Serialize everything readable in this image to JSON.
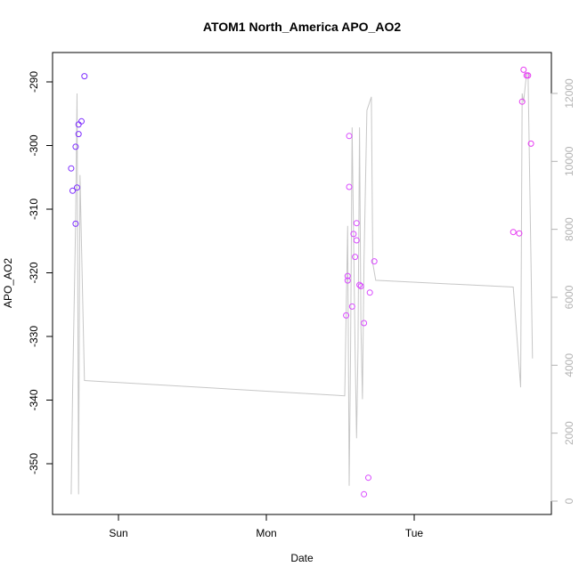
{
  "chart_data": {
    "type": "scatter",
    "title": "ATOM1 North_America APO_AO2",
    "xlabel": "Date",
    "ylabel": "APO_AO2",
    "x_ticks": [
      "Sun",
      "Mon",
      "Tue"
    ],
    "y_ticks": [
      -290,
      -300,
      -310,
      -320,
      -330,
      -340,
      -350
    ],
    "y2_ticks": [
      0,
      2000,
      4000,
      6000,
      8000,
      10000,
      12000
    ],
    "xlim_days": [
      -0.32,
      2.92
    ],
    "ylim": [
      -356.6,
      -285.5
    ],
    "y2lim": [
      -330,
      13300
    ],
    "colors": {
      "points_day1": "#7d2cff",
      "points_day2": "#d94aff",
      "points_day3": "#e63af2",
      "secondary_line": "#c7c7c7",
      "right_axis": "#b3b3b3"
    },
    "series": [
      {
        "role": "APO_AO2",
        "axis": "left",
        "points": [
          {
            "x": -0.32,
            "y": -303.6,
            "color": "#7d2cff"
          },
          {
            "x": -0.31,
            "y": -307.1,
            "color": "#7d2cff"
          },
          {
            "x": -0.29,
            "y": -300.2,
            "color": "#7d2cff"
          },
          {
            "x": -0.29,
            "y": -312.3,
            "color": "#7d2cff"
          },
          {
            "x": -0.28,
            "y": -306.6,
            "color": "#7d2cff"
          },
          {
            "x": -0.27,
            "y": -296.7,
            "color": "#7d2cff"
          },
          {
            "x": -0.27,
            "y": -298.2,
            "color": "#7d2cff"
          },
          {
            "x": -0.25,
            "y": -296.2,
            "color": "#7d2cff"
          },
          {
            "x": -0.23,
            "y": -289.1,
            "color": "#7d2cff"
          },
          {
            "x": 1.54,
            "y": -326.7,
            "color": "#d94aff"
          },
          {
            "x": 1.55,
            "y": -320.5,
            "color": "#d94aff"
          },
          {
            "x": 1.55,
            "y": -321.2,
            "color": "#d94aff"
          },
          {
            "x": 1.56,
            "y": -298.5,
            "color": "#d94aff"
          },
          {
            "x": 1.56,
            "y": -306.5,
            "color": "#d94aff"
          },
          {
            "x": 1.58,
            "y": -325.3,
            "color": "#d94aff"
          },
          {
            "x": 1.59,
            "y": -313.9,
            "color": "#d94aff"
          },
          {
            "x": 1.6,
            "y": -317.5,
            "color": "#d94aff"
          },
          {
            "x": 1.61,
            "y": -312.2,
            "color": "#d94aff"
          },
          {
            "x": 1.61,
            "y": -314.9,
            "color": "#d94aff"
          },
          {
            "x": 1.63,
            "y": -321.9,
            "color": "#d94aff"
          },
          {
            "x": 1.64,
            "y": -322.1,
            "color": "#d94aff"
          },
          {
            "x": 1.66,
            "y": -327.9,
            "color": "#d94aff"
          },
          {
            "x": 1.66,
            "y": -354.8,
            "color": "#d94aff"
          },
          {
            "x": 1.69,
            "y": -352.2,
            "color": "#d94aff"
          },
          {
            "x": 1.7,
            "y": -323.1,
            "color": "#d94aff"
          },
          {
            "x": 1.73,
            "y": -318.2,
            "color": "#d94aff"
          },
          {
            "x": 2.67,
            "y": -313.6,
            "color": "#e63af2"
          },
          {
            "x": 2.71,
            "y": -313.8,
            "color": "#e63af2"
          },
          {
            "x": 2.73,
            "y": -293.1,
            "color": "#e63af2"
          },
          {
            "x": 2.74,
            "y": -288.1,
            "color": "#e63af2"
          },
          {
            "x": 2.76,
            "y": -289.0,
            "color": "#e63af2"
          },
          {
            "x": 2.77,
            "y": -289.0,
            "color": "#e63af2"
          },
          {
            "x": 2.79,
            "y": -299.7,
            "color": "#e63af2"
          }
        ]
      },
      {
        "role": "secondary",
        "axis": "right",
        "x": [
          -0.32,
          -0.31,
          -0.29,
          -0.28,
          -0.27,
          -0.26,
          -0.23,
          1.53,
          1.55,
          1.56,
          1.57,
          1.58,
          1.6,
          1.61,
          1.62,
          1.63,
          1.64,
          1.65,
          1.66,
          1.68,
          1.71,
          1.72,
          1.74,
          2.67,
          2.72,
          2.73,
          2.74,
          2.76,
          2.77,
          2.8
        ],
        "y": [
          200,
          3200,
          8200,
          12000,
          200,
          9600,
          3550,
          3100,
          8100,
          450,
          4500,
          11000,
          4500,
          1850,
          4500,
          11000,
          5150,
          3000,
          7000,
          11500,
          11900,
          7000,
          6500,
          6300,
          3350,
          12000,
          11750,
          12600,
          12600,
          4200
        ]
      }
    ]
  }
}
